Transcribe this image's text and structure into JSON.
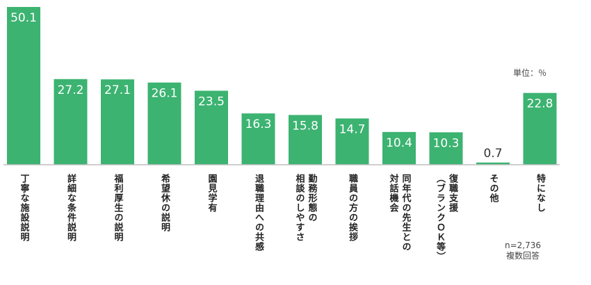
{
  "chart_data": {
    "type": "bar",
    "categories": [
      [
        "丁寧な施設説明"
      ],
      [
        "詳細な条件説明"
      ],
      [
        "福利厚生の説明"
      ],
      [
        "希望休の説明"
      ],
      [
        "園見学有"
      ],
      [
        "退職理由への共感"
      ],
      [
        "勤務形態の",
        "相談のしやすさ"
      ],
      [
        "職員の方の挨拶"
      ],
      [
        "同年代の先生との",
        "対話機会"
      ],
      [
        "復職支援",
        "（ブランクＯＫ等）"
      ],
      [
        "その他"
      ],
      [
        "特になし"
      ]
    ],
    "values": [
      50.1,
      27.2,
      27.1,
      26.1,
      23.5,
      16.3,
      15.8,
      14.7,
      10.4,
      10.3,
      0.7,
      22.8
    ],
    "value_labels": [
      "50.1",
      "27.2",
      "27.1",
      "26.1",
      "23.5",
      "16.3",
      "15.8",
      "14.7",
      "10.4",
      "10.3",
      "0.7",
      "22.8"
    ],
    "ylim": [
      0,
      50.1
    ],
    "unit_label": "単位：％",
    "sample_note": [
      "n=2,736",
      "複数回答"
    ],
    "bar_color": "#3cb371"
  }
}
